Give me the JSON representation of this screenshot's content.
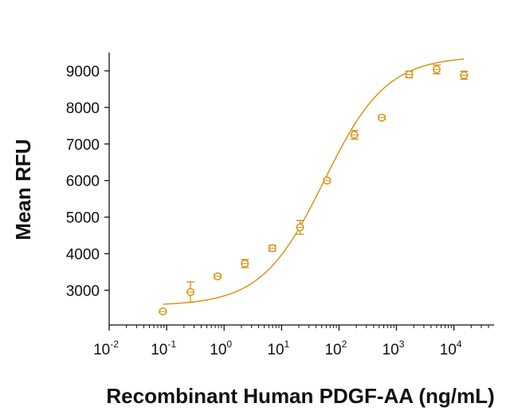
{
  "chart_data": {
    "type": "scatter",
    "xlabel": "Recombinant Human PDGF-AA (ng/mL)",
    "ylabel": "Mean RFU",
    "x_scale": "log",
    "xlim": [
      0.01,
      50000
    ],
    "ylim": [
      2050,
      9500
    ],
    "x_ticks": [
      {
        "base": "10",
        "exp": "-2",
        "value": 0.01
      },
      {
        "base": "10",
        "exp": "-1",
        "value": 0.1
      },
      {
        "base": "10",
        "exp": "0",
        "value": 1
      },
      {
        "base": "10",
        "exp": "1",
        "value": 10
      },
      {
        "base": "10",
        "exp": "2",
        "value": 100
      },
      {
        "base": "10",
        "exp": "3",
        "value": 1000
      },
      {
        "base": "10",
        "exp": "4",
        "value": 10000
      }
    ],
    "y_ticks": [
      "3000",
      "4000",
      "5000",
      "6000",
      "7000",
      "8000",
      "9000"
    ],
    "grid": false,
    "legend": "none",
    "color": "#D4900C",
    "points": [
      {
        "x": 0.086,
        "y": 2420,
        "err": 30
      },
      {
        "x": 0.26,
        "y": 2950,
        "err": 280
      },
      {
        "x": 0.77,
        "y": 3380,
        "err": 50
      },
      {
        "x": 2.3,
        "y": 3730,
        "err": 110
      },
      {
        "x": 6.9,
        "y": 4150,
        "err": 80
      },
      {
        "x": 21,
        "y": 4720,
        "err": 190
      },
      {
        "x": 62,
        "y": 6000,
        "err": 50
      },
      {
        "x": 185,
        "y": 7250,
        "err": 120
      },
      {
        "x": 556,
        "y": 7720,
        "err": 50
      },
      {
        "x": 1667,
        "y": 8900,
        "err": 90
      },
      {
        "x": 5000,
        "y": 9040,
        "err": 120
      },
      {
        "x": 15000,
        "y": 8880,
        "err": 110
      }
    ],
    "fit_curve": {
      "model": "4PL",
      "bottom": 2580,
      "top": 9400,
      "ec50": 55,
      "hill": 0.8,
      "x_range": [
        0.086,
        15000
      ]
    }
  }
}
